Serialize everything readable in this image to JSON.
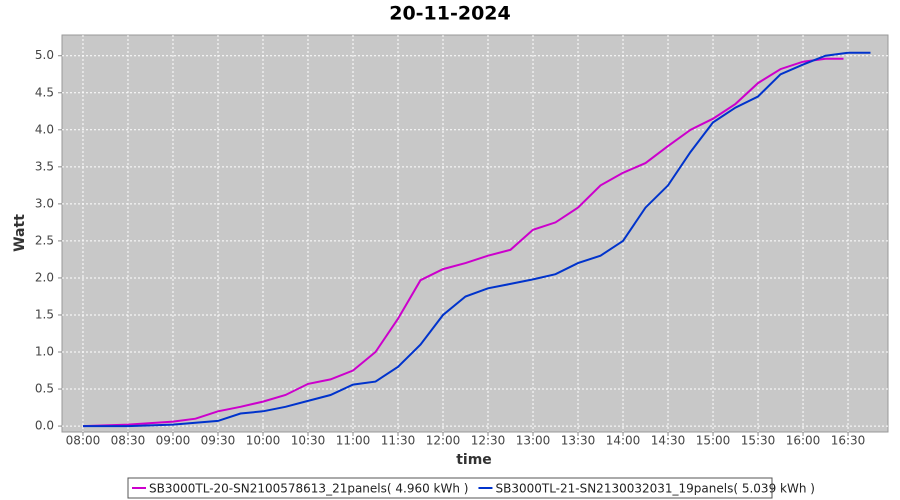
{
  "chart_data": {
    "type": "line",
    "title": "20-11-2024",
    "x_label": "time",
    "y_label": "Watt",
    "xlim": [
      7.767,
      16.944
    ],
    "ylim": [
      -0.08,
      5.28
    ],
    "xticks": [
      {
        "value": 8,
        "label": "08:00"
      },
      {
        "value": 8.5,
        "label": "08:30"
      },
      {
        "value": 9,
        "label": "09:00"
      },
      {
        "value": 9.5,
        "label": "09:30"
      },
      {
        "value": 10,
        "label": "10:00"
      },
      {
        "value": 10.5,
        "label": "10:30"
      },
      {
        "value": 11,
        "label": "11:00"
      },
      {
        "value": 11.5,
        "label": "11:30"
      },
      {
        "value": 12,
        "label": "12:00"
      },
      {
        "value": 12.5,
        "label": "12:30"
      },
      {
        "value": 13,
        "label": "13:00"
      },
      {
        "value": 13.5,
        "label": "13:30"
      },
      {
        "value": 14,
        "label": "14:00"
      },
      {
        "value": 14.5,
        "label": "14:30"
      },
      {
        "value": 15,
        "label": "15:00"
      },
      {
        "value": 15.5,
        "label": "15:30"
      },
      {
        "value": 16,
        "label": "16:00"
      },
      {
        "value": 16.5,
        "label": "16:30"
      }
    ],
    "yticks": [
      {
        "value": 0,
        "label": "0.0"
      },
      0.5,
      {
        "value": 1,
        "label": "1.0"
      },
      1.5,
      {
        "value": 2,
        "label": "2.0"
      },
      2.5,
      {
        "value": 3,
        "label": "3.0"
      },
      3.5,
      {
        "value": 4,
        "label": "4.0"
      },
      4.5,
      {
        "value": 5,
        "label": "5.0"
      }
    ],
    "grid": true,
    "series": [
      {
        "name": "SB3000TL-20-SN2100578613_21panels( 4.960 kWh )",
        "color": "#cc00cc",
        "x": [
          8,
          8.5,
          9,
          9.25,
          9.5,
          9.75,
          10,
          10.25,
          10.5,
          10.75,
          11,
          11.25,
          11.5,
          11.75,
          12,
          12.25,
          12.5,
          12.75,
          13,
          13.25,
          13.5,
          13.75,
          14,
          14.25,
          14.5,
          14.75,
          15,
          15.25,
          15.5,
          15.75,
          16,
          16.25,
          16.45
        ],
        "values": [
          0,
          0.02,
          0.06,
          0.1,
          0.2,
          0.26,
          0.33,
          0.42,
          0.57,
          0.63,
          0.75,
          1.0,
          1.45,
          1.97,
          2.12,
          2.2,
          2.3,
          2.38,
          2.65,
          2.75,
          2.95,
          3.25,
          3.42,
          3.55,
          3.78,
          4.0,
          4.15,
          4.35,
          4.63,
          4.82,
          4.92,
          4.96,
          4.96
        ]
      },
      {
        "name": "SB3000TL-21-SN2130032031_19panels( 5.039 kWh )",
        "color": "#0033cc",
        "x": [
          8,
          8.5,
          9,
          9.5,
          9.75,
          10,
          10.25,
          10.5,
          10.75,
          11,
          11.25,
          11.5,
          11.75,
          12,
          12.25,
          12.5,
          12.75,
          13,
          13.25,
          13.5,
          13.75,
          14,
          14.25,
          14.5,
          14.75,
          15,
          15.25,
          15.5,
          15.75,
          16,
          16.25,
          16.5,
          16.75
        ],
        "values": [
          0,
          0,
          0.02,
          0.07,
          0.17,
          0.2,
          0.26,
          0.34,
          0.42,
          0.56,
          0.6,
          0.8,
          1.1,
          1.5,
          1.75,
          1.86,
          1.92,
          1.98,
          2.05,
          2.2,
          2.3,
          2.5,
          2.95,
          3.25,
          3.7,
          4.1,
          4.3,
          4.45,
          4.75,
          4.88,
          5.0,
          5.04,
          5.04
        ]
      }
    ]
  }
}
